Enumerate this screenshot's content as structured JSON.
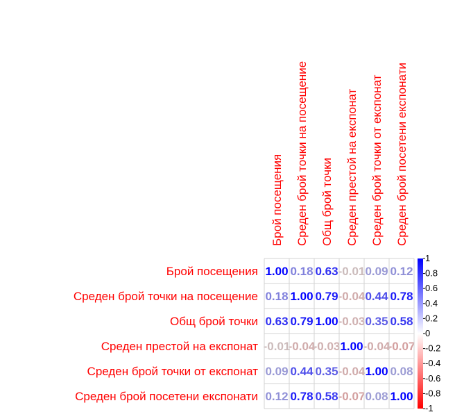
{
  "chart_data": {
    "type": "heatmap",
    "title": "",
    "variables": [
      "Брой посещения",
      "Среден брой точки на посещение",
      "Общ брой точки",
      "Среден престой на експонат",
      "Среден брой точки от експонат",
      "Среден брой посетени експонати"
    ],
    "matrix": [
      [
        1.0,
        0.18,
        0.63,
        -0.01,
        0.09,
        0.12
      ],
      [
        0.18,
        1.0,
        0.79,
        -0.04,
        0.44,
        0.78
      ],
      [
        0.63,
        0.79,
        1.0,
        -0.03,
        0.35,
        0.58
      ],
      [
        -0.01,
        -0.04,
        -0.03,
        1.0,
        -0.04,
        -0.07
      ],
      [
        0.09,
        0.44,
        0.35,
        -0.04,
        1.0,
        0.08
      ],
      [
        0.12,
        0.78,
        0.58,
        -0.07,
        0.08,
        1.0
      ]
    ],
    "cell_labels": [
      [
        "1.00",
        "0.18",
        "0.63",
        "-0.01",
        "0.09",
        "0.12"
      ],
      [
        "0.18",
        "1.00",
        "0.79",
        "-0.04",
        "0.44",
        "0.78"
      ],
      [
        "0.63",
        "0.79",
        "1.00",
        "-0.03",
        "0.35",
        "0.58"
      ],
      [
        "-0.01",
        "-0.04",
        "-0.03",
        "1.00",
        "-0.04",
        "-0.07"
      ],
      [
        "0.09",
        "0.44",
        "0.35",
        "-0.04",
        "1.00",
        "0.08"
      ],
      [
        "0.12",
        "0.78",
        "0.58",
        "-0.07",
        "0.08",
        "1.00"
      ]
    ],
    "colorbar": {
      "range": [
        -1,
        1
      ],
      "ticks": [
        "1",
        "0.8",
        "0.6",
        "0.4",
        "0.2",
        "0",
        "-0.2",
        "-0.4",
        "-0.6",
        "-0.8",
        "-1"
      ],
      "colors": {
        "negative": "#ff0000",
        "neutral": "#ffffff",
        "positive": "#0000ff"
      }
    },
    "label_color": "#ff0000",
    "grid": true
  }
}
